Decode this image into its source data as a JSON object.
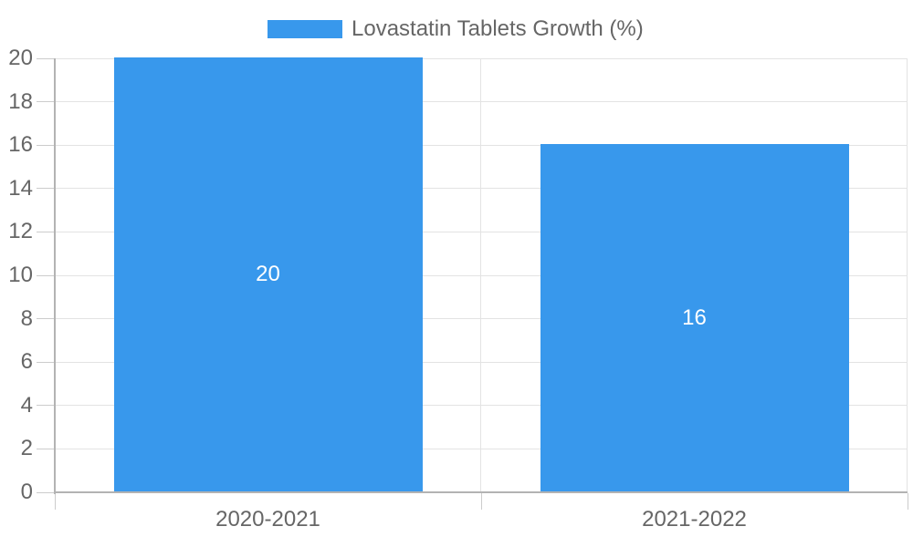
{
  "legend": {
    "label": "Lovastatin Tablets Growth (%)"
  },
  "colors": {
    "bar": "#3898ec",
    "grid": "#e3e3e3",
    "axis": "#b3b3b3",
    "tick": "#cccccc",
    "text": "#666666",
    "data_label": "#ffffff",
    "background": "#ffffff"
  },
  "chart_data": {
    "type": "bar",
    "title": "Lovastatin Tablets Growth (%)",
    "categories": [
      "2020-2021",
      "2021-2022"
    ],
    "series": [
      {
        "name": "Lovastatin Tablets Growth (%)",
        "values": [
          20,
          16
        ]
      }
    ],
    "data_labels": [
      "20",
      "16"
    ],
    "xlabel": "",
    "ylabel": "",
    "ylim": [
      0,
      20
    ],
    "ytick_step": 2,
    "yticks": [
      0,
      2,
      4,
      6,
      8,
      10,
      12,
      14,
      16,
      18,
      20
    ],
    "grid": true,
    "legend_position": "top",
    "bar_color": "#3898ec"
  }
}
